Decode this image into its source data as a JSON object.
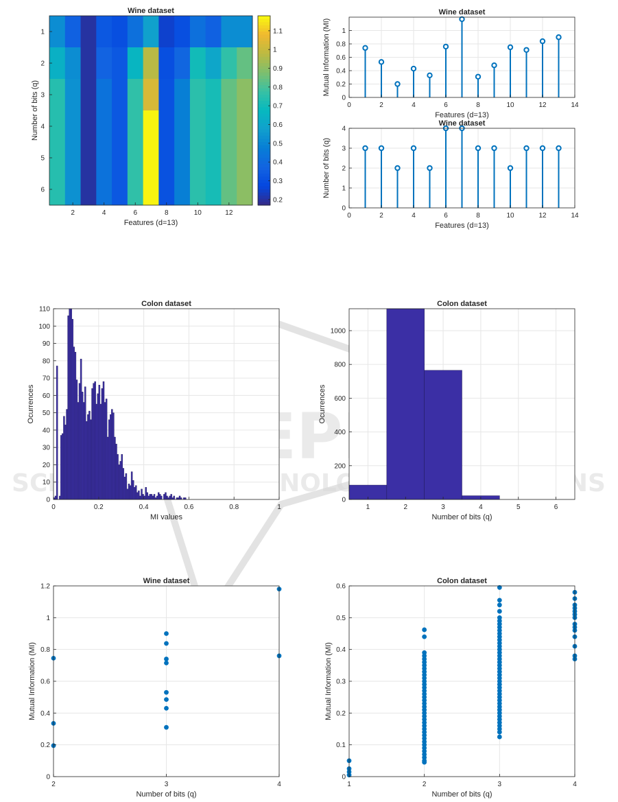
{
  "watermark": {
    "main": "SCITEPRESS",
    "sub": "SCIENCE AND TECHNOLOGY PUBLICATIONS"
  },
  "chart_data": [
    {
      "id": "wine-heatmap",
      "type": "heatmap",
      "title": "Wine dataset",
      "xlabel": "Features (d=13)",
      "ylabel": "Number of bits (q)",
      "x": [
        1,
        2,
        3,
        4,
        5,
        6,
        7,
        8,
        9,
        10,
        11,
        12,
        13
      ],
      "y": [
        1,
        2,
        3,
        4,
        5,
        6
      ],
      "x_ticks": [
        2,
        4,
        6,
        8,
        10,
        12
      ],
      "y_ticks": [
        1,
        2,
        3,
        4,
        5,
        6
      ],
      "colorbar": {
        "range": [
          0.17,
          1.18
        ],
        "ticks": [
          0.2,
          0.3,
          0.4,
          0.5,
          0.6,
          0.7,
          0.8,
          0.9,
          1,
          1.1
        ]
      },
      "values": [
        [
          0.52,
          0.36,
          0.2,
          0.33,
          0.3,
          0.42,
          0.58,
          0.25,
          0.3,
          0.42,
          0.36,
          0.52,
          0.52
        ],
        [
          0.64,
          0.52,
          0.2,
          0.37,
          0.33,
          0.66,
          0.97,
          0.3,
          0.38,
          0.7,
          0.6,
          0.76,
          0.84
        ],
        [
          0.74,
          0.53,
          0.2,
          0.43,
          0.33,
          0.76,
          1.03,
          0.31,
          0.48,
          0.75,
          0.71,
          0.84,
          0.9
        ],
        [
          0.74,
          0.53,
          0.2,
          0.43,
          0.33,
          0.76,
          1.17,
          0.31,
          0.48,
          0.75,
          0.71,
          0.84,
          0.9
        ],
        [
          0.74,
          0.53,
          0.2,
          0.43,
          0.33,
          0.76,
          1.17,
          0.31,
          0.48,
          0.75,
          0.71,
          0.84,
          0.9
        ],
        [
          0.74,
          0.53,
          0.2,
          0.43,
          0.33,
          0.76,
          1.17,
          0.31,
          0.48,
          0.75,
          0.71,
          0.84,
          0.9
        ]
      ]
    },
    {
      "id": "wine-mi-stem",
      "type": "stem",
      "title": "Wine dataset",
      "xlabel": "Features (d=13)",
      "ylabel": "Mutual Information (MI)",
      "xlim": [
        0,
        14
      ],
      "ylim": [
        0,
        1.2
      ],
      "x_ticks": [
        0,
        2,
        4,
        6,
        8,
        10,
        12,
        14
      ],
      "y_ticks": [
        0,
        0.2,
        0.4,
        0.6,
        0.8,
        1
      ],
      "x": [
        1,
        2,
        3,
        4,
        5,
        6,
        7,
        8,
        9,
        10,
        11,
        12,
        13
      ],
      "values": [
        0.74,
        0.53,
        0.2,
        0.43,
        0.33,
        0.76,
        1.17,
        0.31,
        0.48,
        0.75,
        0.71,
        0.84,
        0.9
      ]
    },
    {
      "id": "wine-bits-stem",
      "type": "stem",
      "title": "Wine dataset",
      "xlabel": "Features (d=13)",
      "ylabel": "Number of bits (q)",
      "xlim": [
        0,
        14
      ],
      "ylim": [
        0,
        4
      ],
      "x_ticks": [
        0,
        2,
        4,
        6,
        8,
        10,
        12,
        14
      ],
      "y_ticks": [
        0,
        1,
        2,
        3,
        4
      ],
      "x": [
        1,
        2,
        3,
        4,
        5,
        6,
        7,
        8,
        9,
        10,
        11,
        12,
        13
      ],
      "values": [
        3,
        3,
        2,
        3,
        2,
        4,
        4,
        3,
        3,
        2,
        3,
        3,
        3
      ]
    },
    {
      "id": "colon-mi-hist",
      "type": "bar",
      "title": "Colon dataset",
      "xlabel": "MI values",
      "ylabel": "Ocurrences",
      "xlim": [
        0,
        1
      ],
      "ylim": [
        0,
        110
      ],
      "x_ticks": [
        0,
        0.2,
        0.4,
        0.6,
        0.8,
        1
      ],
      "y_ticks": [
        0,
        10,
        20,
        30,
        40,
        50,
        60,
        70,
        80,
        90,
        100,
        110
      ],
      "bin_start": 0.0,
      "bin_width": 0.00625,
      "values": [
        1,
        2,
        77,
        0,
        2,
        37,
        38,
        48,
        43,
        52,
        106,
        110,
        110,
        104,
        88,
        85,
        69,
        56,
        67,
        81,
        62,
        56,
        65,
        45,
        49,
        51,
        46,
        64,
        67,
        68,
        55,
        61,
        66,
        55,
        64,
        68,
        56,
        58,
        36,
        46,
        49,
        52,
        50,
        36,
        32,
        26,
        20,
        22,
        26,
        18,
        13,
        15,
        6,
        9,
        8,
        16,
        11,
        7,
        8,
        4,
        5,
        2,
        6,
        3,
        2,
        7,
        4,
        2,
        3,
        3,
        2,
        3,
        1,
        2,
        4,
        3,
        2,
        0,
        3,
        4,
        2,
        1,
        2,
        3,
        1,
        2,
        0,
        1,
        1,
        2,
        1,
        0,
        1,
        1,
        0,
        0,
        0,
        0,
        0,
        0
      ]
    },
    {
      "id": "colon-bits-hist",
      "type": "bar",
      "title": "Colon dataset",
      "xlabel": "Number of bits (q)",
      "ylabel": "Ocurrences",
      "xlim": [
        0.5,
        6.5
      ],
      "ylim": [
        0,
        1130
      ],
      "x_ticks": [
        1,
        2,
        3,
        4,
        5,
        6
      ],
      "y_ticks": [
        0,
        200,
        400,
        600,
        800,
        1000
      ],
      "categories": [
        1,
        2,
        3,
        4,
        5,
        6
      ],
      "values": [
        85,
        1130,
        765,
        22,
        0,
        0
      ]
    },
    {
      "id": "wine-scatter",
      "type": "scatter",
      "title": "Wine dataset",
      "xlabel": "Number of bits (q)",
      "ylabel": "Mutual Information (MI)",
      "xlim": [
        2,
        4
      ],
      "ylim": [
        0,
        1.2
      ],
      "x_ticks": [
        2,
        3,
        4
      ],
      "y_ticks": [
        0,
        0.2,
        0.4,
        0.6,
        0.8,
        1,
        1.2
      ],
      "points": [
        [
          2,
          0.745
        ],
        [
          2,
          0.335
        ],
        [
          2,
          0.195
        ],
        [
          3,
          0.9
        ],
        [
          3,
          0.838
        ],
        [
          3,
          0.74
        ],
        [
          3,
          0.715
        ],
        [
          3,
          0.53
        ],
        [
          3,
          0.485
        ],
        [
          3,
          0.43
        ],
        [
          3,
          0.31
        ],
        [
          4,
          1.18
        ],
        [
          4,
          0.76
        ]
      ]
    },
    {
      "id": "colon-scatter",
      "type": "scatter",
      "title": "Colon dataset",
      "xlabel": "Number of bits (q)",
      "ylabel": "Mutual Information (MI)",
      "xlim": [
        1,
        4
      ],
      "ylim": [
        0,
        0.6
      ],
      "x_ticks": [
        1,
        2,
        3,
        4
      ],
      "y_ticks": [
        0,
        0.1,
        0.2,
        0.3,
        0.4,
        0.5,
        0.6
      ],
      "points": [
        [
          1,
          0.05
        ],
        [
          1,
          0.025
        ],
        [
          1,
          0.015
        ],
        [
          1,
          0.005
        ],
        [
          2,
          0.462
        ],
        [
          2,
          0.44
        ],
        [
          2,
          0.39
        ],
        [
          2,
          0.38
        ],
        [
          2,
          0.37
        ],
        [
          2,
          0.36
        ],
        [
          2,
          0.35
        ],
        [
          2,
          0.34
        ],
        [
          2,
          0.33
        ],
        [
          2,
          0.32
        ],
        [
          2,
          0.31
        ],
        [
          2,
          0.3
        ],
        [
          2,
          0.29
        ],
        [
          2,
          0.28
        ],
        [
          2,
          0.27
        ],
        [
          2,
          0.26
        ],
        [
          2,
          0.25
        ],
        [
          2,
          0.24
        ],
        [
          2,
          0.23
        ],
        [
          2,
          0.22
        ],
        [
          2,
          0.21
        ],
        [
          2,
          0.2
        ],
        [
          2,
          0.19
        ],
        [
          2,
          0.18
        ],
        [
          2,
          0.17
        ],
        [
          2,
          0.16
        ],
        [
          2,
          0.15
        ],
        [
          2,
          0.14
        ],
        [
          2,
          0.13
        ],
        [
          2,
          0.12
        ],
        [
          2,
          0.11
        ],
        [
          2,
          0.1
        ],
        [
          2,
          0.09
        ],
        [
          2,
          0.08
        ],
        [
          2,
          0.07
        ],
        [
          2,
          0.06
        ],
        [
          2,
          0.05
        ],
        [
          2,
          0.045
        ],
        [
          3,
          0.595
        ],
        [
          3,
          0.555
        ],
        [
          3,
          0.54
        ],
        [
          3,
          0.52
        ],
        [
          3,
          0.5
        ],
        [
          3,
          0.49
        ],
        [
          3,
          0.48
        ],
        [
          3,
          0.47
        ],
        [
          3,
          0.46
        ],
        [
          3,
          0.45
        ],
        [
          3,
          0.44
        ],
        [
          3,
          0.43
        ],
        [
          3,
          0.42
        ],
        [
          3,
          0.41
        ],
        [
          3,
          0.4
        ],
        [
          3,
          0.39
        ],
        [
          3,
          0.38
        ],
        [
          3,
          0.37
        ],
        [
          3,
          0.36
        ],
        [
          3,
          0.35
        ],
        [
          3,
          0.34
        ],
        [
          3,
          0.33
        ],
        [
          3,
          0.32
        ],
        [
          3,
          0.31
        ],
        [
          3,
          0.3
        ],
        [
          3,
          0.29
        ],
        [
          3,
          0.28
        ],
        [
          3,
          0.27
        ],
        [
          3,
          0.26
        ],
        [
          3,
          0.25
        ],
        [
          3,
          0.24
        ],
        [
          3,
          0.23
        ],
        [
          3,
          0.22
        ],
        [
          3,
          0.21
        ],
        [
          3,
          0.2
        ],
        [
          3,
          0.19
        ],
        [
          3,
          0.18
        ],
        [
          3,
          0.17
        ],
        [
          3,
          0.16
        ],
        [
          3,
          0.15
        ],
        [
          3,
          0.14
        ],
        [
          3,
          0.125
        ],
        [
          4,
          0.58
        ],
        [
          4,
          0.56
        ],
        [
          4,
          0.54
        ],
        [
          4,
          0.53
        ],
        [
          4,
          0.52
        ],
        [
          4,
          0.51
        ],
        [
          4,
          0.5
        ],
        [
          4,
          0.48
        ],
        [
          4,
          0.47
        ],
        [
          4,
          0.46
        ],
        [
          4,
          0.44
        ],
        [
          4,
          0.41
        ],
        [
          4,
          0.38
        ],
        [
          4,
          0.37
        ]
      ]
    }
  ]
}
